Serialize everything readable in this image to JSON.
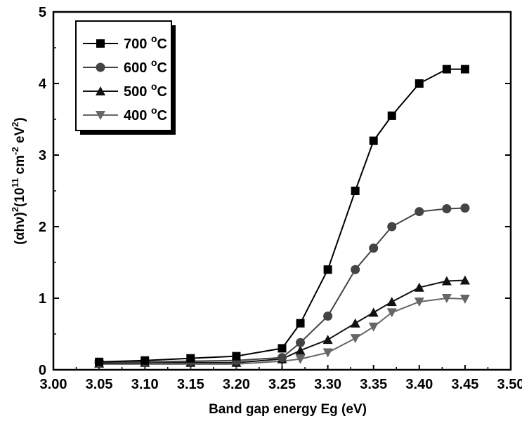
{
  "chart_data": {
    "type": "line",
    "xlabel": "Band gap energy Eg (eV)",
    "ylabel": {
      "part1": "(αhν)",
      "sup1": "2",
      "part2": "(10",
      "sup2": "11",
      "part3": " cm",
      "sup3": "-2",
      "part4": " eV",
      "sup4": "2",
      "part5": ")"
    },
    "xlim": [
      3.0,
      3.5
    ],
    "ylim": [
      0,
      5
    ],
    "x_ticks": [
      "3.00",
      "3.05",
      "3.10",
      "3.15",
      "3.20",
      "3.25",
      "3.30",
      "3.35",
      "3.40",
      "3.45",
      "3.50"
    ],
    "y_ticks": [
      "0",
      "1",
      "2",
      "3",
      "4",
      "5"
    ],
    "x": [
      3.05,
      3.1,
      3.15,
      3.2,
      3.25,
      3.27,
      3.3,
      3.33,
      3.35,
      3.37,
      3.4,
      3.43,
      3.45
    ],
    "series": [
      {
        "name": "700",
        "unit": "°C",
        "marker": "square",
        "color": "#000000",
        "values": [
          0.11,
          0.13,
          0.16,
          0.19,
          0.3,
          0.65,
          1.4,
          2.5,
          3.2,
          3.55,
          4.0,
          4.2,
          4.2
        ]
      },
      {
        "name": "600",
        "unit": "°C",
        "marker": "circle",
        "color": "#444444",
        "values": [
          0.1,
          0.11,
          0.12,
          0.13,
          0.17,
          0.38,
          0.75,
          1.4,
          1.7,
          2.0,
          2.21,
          2.25,
          2.26
        ]
      },
      {
        "name": "500",
        "unit": "°C",
        "marker": "triangle-up",
        "color": "#111111",
        "values": [
          0.09,
          0.1,
          0.1,
          0.1,
          0.15,
          0.27,
          0.42,
          0.65,
          0.8,
          0.95,
          1.15,
          1.24,
          1.25
        ]
      },
      {
        "name": "400",
        "unit": "°C",
        "marker": "triangle-down",
        "color": "#666666",
        "values": [
          0.08,
          0.08,
          0.08,
          0.08,
          0.12,
          0.15,
          0.24,
          0.44,
          0.6,
          0.8,
          0.95,
          1.0,
          0.99
        ]
      }
    ],
    "legend_position": "top-left",
    "grid": false
  }
}
